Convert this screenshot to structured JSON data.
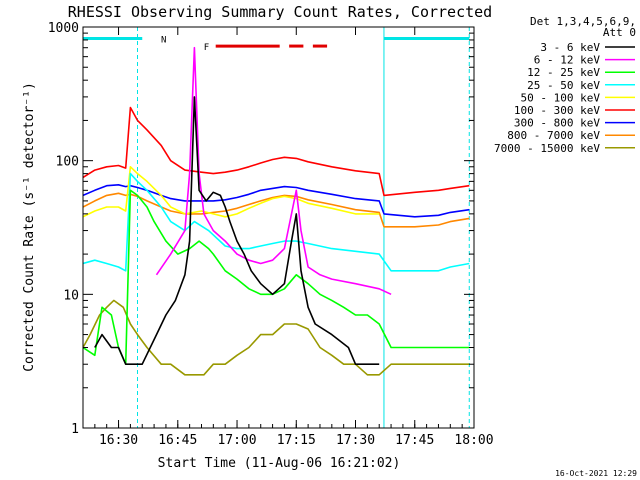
{
  "chart_data": {
    "type": "line",
    "title": "RHESSI Observing Summary Count Rates, Corrected",
    "xlabel": "Start Time (11-Aug-06 16:21:02)",
    "ylabel": "Corrected Count Rate (s⁻¹ detector⁻¹)",
    "x_range_minutes": [
      16.35,
      18.0
    ],
    "xlim": [
      "16:21",
      "18:00"
    ],
    "ylim": [
      1,
      1000
    ],
    "yscale": "log",
    "x_ticks": [
      {
        "t": 16.5,
        "label": "16:30"
      },
      {
        "t": 16.75,
        "label": "16:45"
      },
      {
        "t": 17.0,
        "label": "17:00"
      },
      {
        "t": 17.25,
        "label": "17:15"
      },
      {
        "t": 17.5,
        "label": "17:30"
      },
      {
        "t": 17.75,
        "label": "17:45"
      },
      {
        "t": 18.0,
        "label": "18:00"
      }
    ],
    "y_ticks": [
      {
        "v": 1,
        "label": "1"
      },
      {
        "v": 10,
        "label": "10"
      },
      {
        "v": 100,
        "label": "100"
      },
      {
        "v": 1000,
        "label": "1000"
      }
    ],
    "legend_header": [
      "Det 1,3,4,5,6,9,",
      "Att 0"
    ],
    "legend_placement": "right",
    "footer_date": "16-Oct-2021 12:29",
    "flags": [
      {
        "letter": "N",
        "color": "#00e5e5",
        "level": 820,
        "segments": [
          [
            16.35,
            16.6
          ],
          [
            17.62,
            17.98
          ]
        ]
      },
      {
        "letter": "F",
        "color": "#e00000",
        "level": 720,
        "segments": [
          [
            16.91,
            17.18
          ],
          [
            17.22,
            17.28
          ],
          [
            17.32,
            17.38
          ]
        ]
      }
    ],
    "vlines_cyan": [
      16.58,
      17.62,
      17.98
    ],
    "series": [
      {
        "name": "3 - 6 keV",
        "color": "#000000",
        "points": [
          [
            16.4,
            4
          ],
          [
            16.43,
            5
          ],
          [
            16.47,
            4
          ],
          [
            16.5,
            4
          ],
          [
            16.53,
            3
          ],
          [
            16.6,
            3
          ],
          [
            16.66,
            5
          ],
          [
            16.7,
            7
          ],
          [
            16.74,
            9
          ],
          [
            16.78,
            14
          ],
          [
            16.8,
            25
          ],
          [
            16.82,
            300
          ],
          [
            16.84,
            60
          ],
          [
            16.87,
            50
          ],
          [
            16.9,
            58
          ],
          [
            16.93,
            55
          ],
          [
            16.95,
            45
          ],
          [
            16.97,
            35
          ],
          [
            17.0,
            25
          ],
          [
            17.03,
            20
          ],
          [
            17.06,
            15
          ],
          [
            17.1,
            12
          ],
          [
            17.15,
            10
          ],
          [
            17.2,
            12
          ],
          [
            17.23,
            25
          ],
          [
            17.25,
            40
          ],
          [
            17.27,
            15
          ],
          [
            17.3,
            8
          ],
          [
            17.33,
            6
          ],
          [
            17.4,
            5
          ],
          [
            17.47,
            4
          ],
          [
            17.5,
            3
          ],
          [
            17.55,
            3
          ],
          [
            17.6,
            3
          ]
        ]
      },
      {
        "name": "6 - 12 keV",
        "color": "#ff00ff",
        "points": [
          [
            16.66,
            14
          ],
          [
            16.72,
            20
          ],
          [
            16.78,
            30
          ],
          [
            16.8,
            80
          ],
          [
            16.82,
            700
          ],
          [
            16.84,
            80
          ],
          [
            16.86,
            40
          ],
          [
            16.9,
            30
          ],
          [
            16.95,
            25
          ],
          [
            17.0,
            20
          ],
          [
            17.05,
            18
          ],
          [
            17.1,
            17
          ],
          [
            17.15,
            18
          ],
          [
            17.2,
            22
          ],
          [
            17.23,
            40
          ],
          [
            17.25,
            60
          ],
          [
            17.27,
            30
          ],
          [
            17.3,
            16
          ],
          [
            17.35,
            14
          ],
          [
            17.4,
            13
          ],
          [
            17.5,
            12
          ],
          [
            17.6,
            11
          ],
          [
            17.65,
            10
          ]
        ]
      },
      {
        "name": "12 - 25 keV",
        "color": "#00ff00",
        "points": [
          [
            16.35,
            4
          ],
          [
            16.4,
            3.5
          ],
          [
            16.43,
            8
          ],
          [
            16.47,
            7
          ],
          [
            16.5,
            4
          ],
          [
            16.53,
            3
          ],
          [
            16.55,
            60
          ],
          [
            16.58,
            55
          ],
          [
            16.62,
            45
          ],
          [
            16.65,
            35
          ],
          [
            16.7,
            25
          ],
          [
            16.75,
            20
          ],
          [
            16.8,
            22
          ],
          [
            16.84,
            25
          ],
          [
            16.88,
            22
          ],
          [
            16.9,
            20
          ],
          [
            16.95,
            15
          ],
          [
            17.0,
            13
          ],
          [
            17.05,
            11
          ],
          [
            17.1,
            10
          ],
          [
            17.15,
            10
          ],
          [
            17.2,
            11
          ],
          [
            17.25,
            14
          ],
          [
            17.3,
            12
          ],
          [
            17.35,
            10
          ],
          [
            17.4,
            9
          ],
          [
            17.45,
            8
          ],
          [
            17.5,
            7
          ],
          [
            17.55,
            7
          ],
          [
            17.6,
            6
          ],
          [
            17.65,
            4
          ],
          [
            17.7,
            4
          ],
          [
            17.8,
            4
          ],
          [
            17.9,
            4
          ],
          [
            17.98,
            4
          ]
        ]
      },
      {
        "name": "25 - 50 keV",
        "color": "#00ffff",
        "points": [
          [
            16.35,
            17
          ],
          [
            16.4,
            18
          ],
          [
            16.45,
            17
          ],
          [
            16.5,
            16
          ],
          [
            16.53,
            15
          ],
          [
            16.55,
            80
          ],
          [
            16.58,
            70
          ],
          [
            16.62,
            60
          ],
          [
            16.68,
            45
          ],
          [
            16.72,
            35
          ],
          [
            16.78,
            30
          ],
          [
            16.82,
            35
          ],
          [
            16.88,
            30
          ],
          [
            16.95,
            23
          ],
          [
            17.0,
            22
          ],
          [
            17.05,
            22
          ],
          [
            17.1,
            23
          ],
          [
            17.15,
            24
          ],
          [
            17.2,
            25
          ],
          [
            17.25,
            25
          ],
          [
            17.3,
            24
          ],
          [
            17.4,
            22
          ],
          [
            17.5,
            21
          ],
          [
            17.6,
            20
          ],
          [
            17.65,
            15
          ],
          [
            17.75,
            15
          ],
          [
            17.85,
            15
          ],
          [
            17.9,
            16
          ],
          [
            17.98,
            17
          ]
        ]
      },
      {
        "name": "50 - 100 keV",
        "color": "#ffff00",
        "points": [
          [
            16.35,
            38
          ],
          [
            16.4,
            42
          ],
          [
            16.45,
            45
          ],
          [
            16.5,
            45
          ],
          [
            16.53,
            42
          ],
          [
            16.55,
            90
          ],
          [
            16.58,
            80
          ],
          [
            16.62,
            70
          ],
          [
            16.68,
            55
          ],
          [
            16.72,
            45
          ],
          [
            16.78,
            40
          ],
          [
            16.85,
            42
          ],
          [
            16.9,
            40
          ],
          [
            16.95,
            38
          ],
          [
            17.0,
            40
          ],
          [
            17.05,
            44
          ],
          [
            17.1,
            48
          ],
          [
            17.15,
            52
          ],
          [
            17.2,
            54
          ],
          [
            17.25,
            52
          ],
          [
            17.3,
            48
          ],
          [
            17.4,
            44
          ],
          [
            17.5,
            40
          ],
          [
            17.6,
            40
          ]
        ]
      },
      {
        "name": "100 - 300 keV",
        "color": "#ff0000",
        "points": [
          [
            16.35,
            75
          ],
          [
            16.4,
            85
          ],
          [
            16.45,
            90
          ],
          [
            16.5,
            92
          ],
          [
            16.53,
            88
          ],
          [
            16.55,
            250
          ],
          [
            16.58,
            200
          ],
          [
            16.62,
            170
          ],
          [
            16.68,
            130
          ],
          [
            16.72,
            100
          ],
          [
            16.78,
            85
          ],
          [
            16.85,
            82
          ],
          [
            16.9,
            80
          ],
          [
            16.95,
            82
          ],
          [
            17.0,
            85
          ],
          [
            17.05,
            90
          ],
          [
            17.1,
            96
          ],
          [
            17.15,
            102
          ],
          [
            17.2,
            106
          ],
          [
            17.25,
            104
          ],
          [
            17.3,
            98
          ],
          [
            17.4,
            90
          ],
          [
            17.5,
            84
          ],
          [
            17.6,
            80
          ],
          [
            17.62,
            55
          ],
          [
            17.75,
            58
          ],
          [
            17.85,
            60
          ],
          [
            17.9,
            62
          ],
          [
            17.98,
            65
          ]
        ]
      },
      {
        "name": "300 - 800 keV",
        "color": "#0000ff",
        "points": [
          [
            16.35,
            55
          ],
          [
            16.4,
            60
          ],
          [
            16.45,
            65
          ],
          [
            16.5,
            66
          ],
          [
            16.53,
            64
          ],
          [
            16.55,
            65
          ],
          [
            16.58,
            63
          ],
          [
            16.62,
            60
          ],
          [
            16.68,
            55
          ],
          [
            16.72,
            52
          ],
          [
            16.78,
            50
          ],
          [
            16.85,
            50
          ],
          [
            16.9,
            50
          ],
          [
            16.95,
            51
          ],
          [
            17.0,
            53
          ],
          [
            17.05,
            56
          ],
          [
            17.1,
            60
          ],
          [
            17.15,
            62
          ],
          [
            17.2,
            64
          ],
          [
            17.25,
            63
          ],
          [
            17.3,
            60
          ],
          [
            17.4,
            56
          ],
          [
            17.5,
            52
          ],
          [
            17.6,
            50
          ],
          [
            17.62,
            40
          ],
          [
            17.75,
            38
          ],
          [
            17.85,
            39
          ],
          [
            17.9,
            41
          ],
          [
            17.98,
            43
          ]
        ]
      },
      {
        "name": "800 - 7000 keV",
        "color": "#ff8800",
        "points": [
          [
            16.35,
            45
          ],
          [
            16.4,
            50
          ],
          [
            16.45,
            55
          ],
          [
            16.5,
            57
          ],
          [
            16.53,
            55
          ],
          [
            16.55,
            56
          ],
          [
            16.58,
            54
          ],
          [
            16.62,
            50
          ],
          [
            16.68,
            45
          ],
          [
            16.72,
            42
          ],
          [
            16.78,
            40
          ],
          [
            16.85,
            40
          ],
          [
            16.9,
            41
          ],
          [
            16.95,
            42
          ],
          [
            17.0,
            44
          ],
          [
            17.05,
            47
          ],
          [
            17.1,
            50
          ],
          [
            17.15,
            53
          ],
          [
            17.2,
            55
          ],
          [
            17.25,
            54
          ],
          [
            17.3,
            51
          ],
          [
            17.4,
            47
          ],
          [
            17.5,
            43
          ],
          [
            17.6,
            41
          ],
          [
            17.62,
            32
          ],
          [
            17.75,
            32
          ],
          [
            17.85,
            33
          ],
          [
            17.9,
            35
          ],
          [
            17.98,
            37
          ]
        ]
      },
      {
        "name": "7000 - 15000 keV",
        "color": "#999900",
        "points": [
          [
            16.35,
            4
          ],
          [
            16.38,
            5
          ],
          [
            16.42,
            7
          ],
          [
            16.45,
            8
          ],
          [
            16.48,
            9
          ],
          [
            16.52,
            8
          ],
          [
            16.55,
            6
          ],
          [
            16.58,
            5
          ],
          [
            16.62,
            4
          ],
          [
            16.68,
            3
          ],
          [
            16.72,
            3
          ],
          [
            16.78,
            2.5
          ],
          [
            16.82,
            2.5
          ],
          [
            16.86,
            2.5
          ],
          [
            16.9,
            3
          ],
          [
            16.95,
            3
          ],
          [
            17.0,
            3.5
          ],
          [
            17.05,
            4
          ],
          [
            17.1,
            5
          ],
          [
            17.15,
            5
          ],
          [
            17.2,
            6
          ],
          [
            17.25,
            6
          ],
          [
            17.3,
            5.5
          ],
          [
            17.35,
            4
          ],
          [
            17.4,
            3.5
          ],
          [
            17.45,
            3
          ],
          [
            17.5,
            3
          ],
          [
            17.55,
            2.5
          ],
          [
            17.6,
            2.5
          ],
          [
            17.65,
            3
          ],
          [
            17.7,
            3
          ],
          [
            17.75,
            3
          ],
          [
            17.8,
            3
          ],
          [
            17.85,
            3
          ],
          [
            17.9,
            3
          ],
          [
            17.98,
            3
          ]
        ]
      }
    ]
  }
}
